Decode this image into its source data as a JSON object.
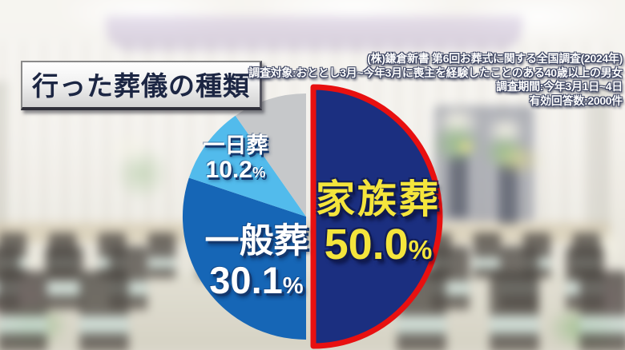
{
  "header": {
    "title": "行った葬儀の種類"
  },
  "source": {
    "lines": [
      "(株)鎌倉新書 第6回お葬式に関する全国調査(2024年)",
      "調査対象:おととし3月~今年3月に喪主を経験したことのある40歳以上の男女",
      "調査期間:今年3月1日~4日",
      "有効回答数:2000件"
    ]
  },
  "chart_data": {
    "type": "pie",
    "title": "行った葬儀の種類",
    "direction": "clockwise",
    "start_angle_deg": 0,
    "unit": "%",
    "legend": "none",
    "labels_inside": true,
    "emphasis_outline_color": "#e81010",
    "slices": [
      {
        "label": "家族葬",
        "value": 50.0,
        "value_text": "50.0",
        "color": "#1b2f80",
        "label_color": "#f4e53c",
        "emphasized": true,
        "exploded": true
      },
      {
        "label": "一般葬",
        "value": 30.1,
        "value_text": "30.1",
        "color": "#1666b6",
        "label_color": "#ffffff"
      },
      {
        "label": "一日葬",
        "value": 10.2,
        "value_text": "10.2",
        "color": "#52bbec",
        "label_color": "#ffffff"
      },
      {
        "label": "",
        "value": 9.7,
        "value_text": "",
        "color": "#c6c8ca",
        "label_color": "",
        "unlabeled": true
      }
    ]
  }
}
